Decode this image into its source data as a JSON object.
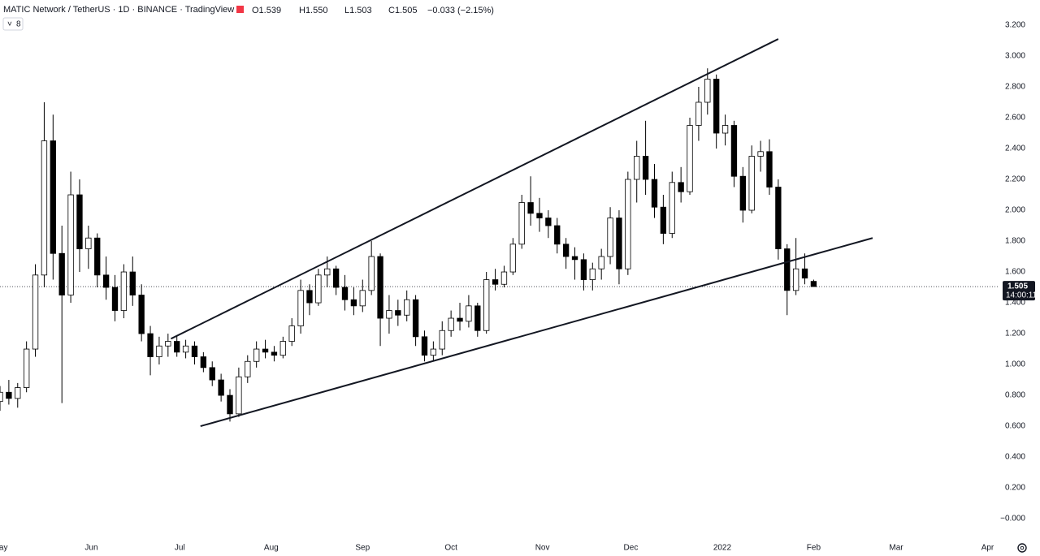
{
  "chart_data": {
    "type": "candlestick",
    "title": "MATIC Network / TetherUS · 1D · BINANCE · TradingView",
    "info": [
      "O1.539",
      "H1.550",
      "L1.503",
      "C1.505",
      "−0.033 (−2.15%)"
    ],
    "badge": "8",
    "x": [
      0,
      3,
      6,
      9,
      12,
      15,
      18,
      21,
      24,
      27,
      30,
      33,
      36,
      39,
      42,
      45,
      48,
      51,
      54,
      57,
      60,
      63,
      66,
      69,
      72,
      75,
      78,
      81,
      84,
      87,
      90,
      93,
      96,
      99,
      102,
      105,
      108,
      111,
      114,
      117,
      120,
      123,
      126,
      129,
      132,
      135,
      138,
      141,
      144,
      147,
      150,
      153,
      156,
      159,
      162,
      165,
      168,
      171,
      174,
      177,
      180,
      183,
      186,
      189,
      192,
      195,
      198,
      201,
      204,
      207,
      210,
      213,
      216,
      219,
      222,
      225,
      228,
      231,
      234,
      237,
      240,
      243,
      246,
      249,
      252,
      255,
      258,
      261,
      264,
      267,
      270,
      273,
      276
    ],
    "open": [
      0.76,
      0.82,
      0.78,
      0.85,
      1.1,
      1.58,
      2.45,
      1.72,
      1.45,
      2.1,
      1.75,
      1.82,
      1.58,
      1.5,
      1.35,
      1.6,
      1.45,
      1.2,
      1.05,
      1.12,
      1.15,
      1.08,
      1.12,
      1.05,
      0.98,
      0.9,
      0.8,
      0.68,
      0.92,
      1.02,
      1.1,
      1.08,
      1.06,
      1.15,
      1.25,
      1.48,
      1.4,
      1.58,
      1.62,
      1.5,
      1.42,
      1.38,
      1.48,
      1.7,
      1.3,
      1.35,
      1.32,
      1.42,
      1.18,
      1.06,
      1.1,
      1.22,
      1.3,
      1.28,
      1.38,
      1.22,
      1.55,
      1.52,
      1.6,
      1.78,
      2.05,
      1.98,
      1.95,
      1.9,
      1.78,
      1.7,
      1.68,
      1.55,
      1.62,
      1.7,
      1.95,
      1.62,
      2.2,
      2.35,
      2.2,
      2.02,
      1.85,
      2.18,
      2.12,
      2.55,
      2.7,
      2.85,
      2.5,
      2.55,
      2.22,
      2.0,
      2.35,
      2.38,
      2.15,
      1.75,
      1.48,
      1.62,
      1.539
    ],
    "high": [
      0.86,
      0.9,
      0.88,
      1.15,
      1.65,
      2.7,
      2.62,
      1.9,
      2.25,
      2.2,
      1.9,
      1.85,
      1.7,
      1.58,
      1.65,
      1.7,
      1.52,
      1.25,
      1.18,
      1.2,
      1.19,
      1.16,
      1.15,
      1.08,
      1.02,
      0.94,
      0.84,
      0.98,
      1.06,
      1.15,
      1.16,
      1.12,
      1.18,
      1.3,
      1.55,
      1.52,
      1.62,
      1.7,
      1.64,
      1.58,
      1.5,
      1.55,
      1.8,
      1.72,
      1.45,
      1.42,
      1.48,
      1.45,
      1.22,
      1.15,
      1.28,
      1.35,
      1.4,
      1.45,
      1.4,
      1.6,
      1.62,
      1.64,
      1.82,
      2.1,
      2.22,
      2.08,
      2.0,
      1.95,
      1.82,
      1.76,
      1.72,
      1.66,
      1.75,
      2.02,
      2.0,
      2.25,
      2.45,
      2.58,
      2.3,
      2.1,
      2.25,
      2.28,
      2.6,
      2.8,
      2.92,
      2.88,
      2.62,
      2.58,
      2.28,
      2.42,
      2.45,
      2.46,
      2.2,
      1.78,
      1.82,
      1.72,
      1.55
    ],
    "low": [
      0.7,
      0.74,
      0.72,
      0.82,
      1.05,
      1.5,
      1.55,
      0.75,
      1.4,
      1.6,
      1.62,
      1.5,
      1.42,
      1.28,
      1.3,
      1.38,
      1.15,
      0.93,
      1.0,
      1.05,
      1.05,
      1.04,
      1.0,
      0.95,
      0.86,
      0.76,
      0.63,
      0.66,
      0.88,
      0.98,
      1.04,
      1.02,
      1.04,
      1.12,
      1.2,
      1.32,
      1.38,
      1.5,
      1.45,
      1.35,
      1.32,
      1.34,
      1.45,
      1.12,
      1.2,
      1.25,
      1.28,
      1.12,
      1.02,
      1.02,
      1.06,
      1.18,
      1.22,
      1.24,
      1.18,
      1.2,
      1.48,
      1.5,
      1.58,
      1.75,
      1.9,
      1.86,
      1.82,
      1.72,
      1.62,
      1.55,
      1.48,
      1.48,
      1.55,
      1.65,
      1.52,
      1.58,
      2.05,
      2.1,
      1.95,
      1.78,
      1.82,
      2.05,
      2.1,
      2.45,
      2.62,
      2.4,
      2.42,
      2.15,
      1.92,
      1.98,
      2.25,
      2.1,
      1.68,
      1.32,
      1.45,
      1.52,
      1.503
    ],
    "close": [
      0.82,
      0.78,
      0.85,
      1.1,
      1.58,
      2.45,
      1.72,
      1.45,
      2.1,
      1.75,
      1.82,
      1.58,
      1.5,
      1.35,
      1.6,
      1.45,
      1.2,
      1.05,
      1.12,
      1.15,
      1.08,
      1.12,
      1.05,
      0.98,
      0.9,
      0.8,
      0.68,
      0.92,
      1.02,
      1.1,
      1.08,
      1.06,
      1.15,
      1.25,
      1.48,
      1.4,
      1.58,
      1.62,
      1.5,
      1.42,
      1.38,
      1.48,
      1.7,
      1.3,
      1.35,
      1.32,
      1.42,
      1.18,
      1.06,
      1.1,
      1.22,
      1.3,
      1.28,
      1.38,
      1.22,
      1.55,
      1.52,
      1.6,
      1.78,
      2.05,
      1.98,
      1.95,
      1.9,
      1.78,
      1.7,
      1.68,
      1.55,
      1.62,
      1.7,
      1.95,
      1.62,
      2.2,
      2.35,
      2.2,
      2.02,
      1.85,
      2.18,
      2.12,
      2.55,
      2.7,
      2.85,
      2.5,
      2.55,
      2.22,
      2.0,
      2.35,
      2.38,
      2.15,
      1.75,
      1.48,
      1.62,
      1.56,
      1.505
    ],
    "up_color": "#ffffff",
    "down_color": "#000000",
    "edge_color": "#000000",
    "trendlines": [
      {
        "x": [
          58,
          264
        ],
        "y": [
          1.167,
          3.11
        ]
      },
      {
        "x": [
          68,
          296
        ],
        "y": [
          0.6,
          1.82
        ]
      }
    ],
    "last_price": {
      "value": 1.505,
      "label": "1.505"
    },
    "countdown": "14:00:11",
    "xlim": [
      0,
      339
    ],
    "xticks": [
      {
        "value": 0,
        "label": "May"
      },
      {
        "value": 31,
        "label": "Jun"
      },
      {
        "value": 61,
        "label": "Jul"
      },
      {
        "value": 92,
        "label": "Aug"
      },
      {
        "value": 123,
        "label": "Sep"
      },
      {
        "value": 153,
        "label": "Oct"
      },
      {
        "value": 184,
        "label": "Nov"
      },
      {
        "value": 214,
        "label": "Dec"
      },
      {
        "value": 245,
        "label": "2022"
      },
      {
        "value": 276,
        "label": "Feb"
      },
      {
        "value": 304,
        "label": "Mar"
      },
      {
        "value": 335,
        "label": "Apr"
      }
    ],
    "ylim": [
      -0.11,
      3.363
    ],
    "yticks": [
      {
        "value": 0,
        "label": "−0.000"
      },
      {
        "value": 0.2,
        "label": "0.200"
      },
      {
        "value": 0.4,
        "label": "0.400"
      },
      {
        "value": 0.6,
        "label": "0.600"
      },
      {
        "value": 0.8,
        "label": "0.800"
      },
      {
        "value": 1,
        "label": "1.000"
      },
      {
        "value": 1.2,
        "label": "1.200"
      },
      {
        "value": 1.4,
        "label": "1.400"
      },
      {
        "value": 1.6,
        "label": "1.600"
      },
      {
        "value": 1.8,
        "label": "1.800"
      },
      {
        "value": 2,
        "label": "2.000"
      },
      {
        "value": 2.2,
        "label": "2.200"
      },
      {
        "value": 2.4,
        "label": "2.400"
      },
      {
        "value": 2.6,
        "label": "2.600"
      },
      {
        "value": 2.8,
        "label": "2.800"
      },
      {
        "value": 3,
        "label": "3.000"
      },
      {
        "value": 3.2,
        "label": "3.200"
      }
    ]
  }
}
